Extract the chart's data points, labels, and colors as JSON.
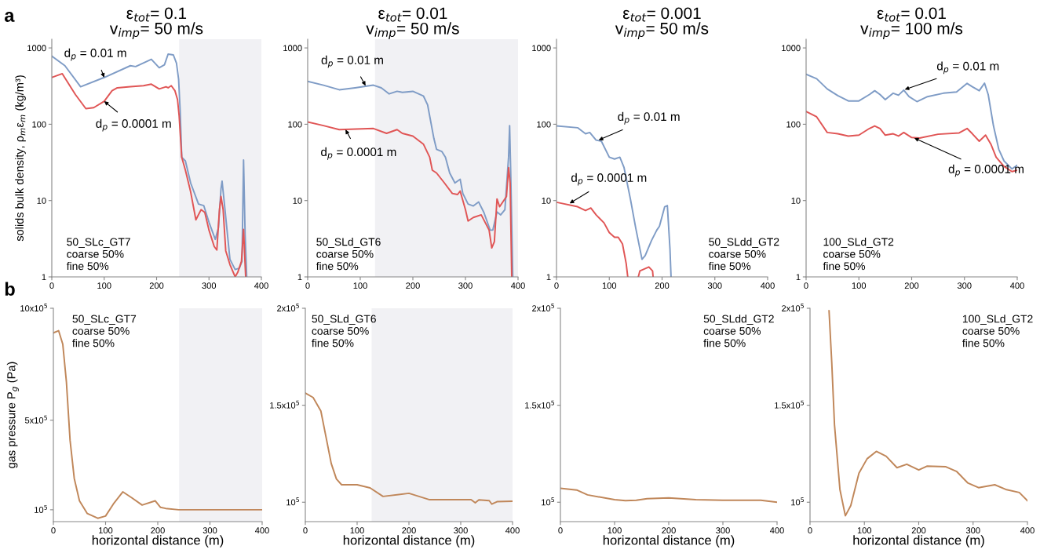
{
  "chart_data": [
    {
      "type": "line",
      "title": "ε$_{tot}$= 0.1\nv$_{imp}$= 50 m/s",
      "ylabel": "solids bulk density, ρ$_{m}$ε$_{m}$ (kg/m³)",
      "log": true,
      "xlim": [
        0,
        400
      ],
      "xticks": [
        0,
        100,
        200,
        300,
        400
      ],
      "ylim": [
        1,
        1300
      ],
      "yticks": [
        1,
        10,
        100,
        1000
      ],
      "grid": false,
      "annotations": [
        "a",
        "50_SLc_GT7\ncoarse 50%\nfine 50%",
        {
          "text": "d$_{p}$ = 0.01 m",
          "x": 100,
          "y": 410
        },
        {
          "text": "d$_{p}$ = 0.0001 m",
          "x": 100,
          "y": 200
        }
      ],
      "bands": [
        {
          "axis": "x",
          "from": 243,
          "to": 400,
          "color": "#f1f1f4"
        }
      ],
      "series": [
        {
          "color": "#7f9cc6",
          "x": [
            0,
            25,
            55,
            100,
            150,
            160,
            190,
            205,
            215,
            222,
            232,
            238,
            242,
            245,
            248,
            255,
            265,
            280,
            290,
            300,
            312,
            318,
            323,
            325,
            330,
            340,
            350,
            358,
            363,
            366,
            369,
            372
          ],
          "values": [
            783,
            585,
            310,
            410,
            585,
            570,
            710,
            550,
            600,
            830,
            810,
            630,
            390,
            150,
            37,
            33,
            17,
            9,
            8.6,
            5.2,
            3.1,
            4.4,
            14.4,
            18,
            8.3,
            1.7,
            1.25,
            1.3,
            1.6,
            34,
            3.5,
            1
          ]
        },
        {
          "color": "#e05555",
          "x": [
            0,
            20,
            45,
            65,
            80,
            100,
            115,
            125,
            150,
            175,
            190,
            205,
            218,
            222,
            228,
            235,
            240,
            243,
            248,
            255,
            265,
            275,
            285,
            292,
            300,
            310,
            315,
            320,
            323,
            327,
            332,
            340,
            350,
            355,
            362,
            366,
            370
          ],
          "values": [
            410,
            460,
            245,
            160,
            165,
            200,
            275,
            300,
            310,
            320,
            335,
            290,
            310,
            300,
            320,
            275,
            210,
            130,
            37,
            25,
            13,
            5.6,
            7.6,
            7,
            4.1,
            2.5,
            2.25,
            7.6,
            11.3,
            7.6,
            2.2,
            1.45,
            1,
            1.15,
            1.6,
            4.2,
            1
          ]
        }
      ]
    },
    {
      "type": "line",
      "title": "ε$_{tot}$= 0.01\nv$_{imp}$= 50 m/s",
      "log": true,
      "xlim": [
        0,
        400
      ],
      "xticks": [
        0,
        100,
        200,
        300,
        400
      ],
      "ylim": [
        1,
        1300
      ],
      "yticks": [
        1,
        10,
        100,
        1000
      ],
      "grid": false,
      "annotations": [
        "50_SLd_GT6\ncoarse 50%\nfine 50%",
        {
          "text": "d$_{p}$ = 0.01 m",
          "x": 110,
          "y": 320
        },
        {
          "text": "d$_{p}$ = 0.0001 m",
          "x": 72,
          "y": 85
        }
      ],
      "bands": [
        {
          "axis": "x",
          "from": 128,
          "to": 400,
          "color": "#f1f1f4"
        }
      ],
      "series": [
        {
          "color": "#7f9cc6",
          "x": [
            0,
            30,
            60,
            90,
            125,
            140,
            155,
            170,
            180,
            200,
            220,
            228,
            240,
            245,
            255,
            262,
            270,
            280,
            290,
            295,
            305,
            315,
            325,
            335,
            347,
            352,
            360,
            367,
            375,
            382,
            384,
            386,
            390
          ],
          "values": [
            365,
            325,
            283,
            300,
            325,
            300,
            250,
            270,
            262,
            270,
            235,
            180,
            65,
            47,
            44,
            37,
            23,
            17,
            19,
            12.4,
            9,
            8.5,
            9.6,
            7,
            4.1,
            4.1,
            7.1,
            6.5,
            7.6,
            37,
            96,
            25,
            1
          ]
        },
        {
          "color": "#e05555",
          "x": [
            0,
            30,
            60,
            125,
            150,
            170,
            180,
            200,
            220,
            232,
            237,
            245,
            260,
            275,
            285,
            290,
            300,
            305,
            315,
            330,
            345,
            350,
            355,
            360,
            365,
            378,
            382,
            385,
            388
          ],
          "values": [
            107,
            96,
            85,
            88,
            76,
            85,
            76,
            70,
            55,
            37,
            25,
            23,
            17,
            12.4,
            12,
            13.3,
            7.6,
            5.4,
            6,
            6.5,
            4.1,
            2.4,
            2.9,
            10.5,
            8.3,
            11.3,
            27,
            17,
            1
          ]
        }
      ]
    },
    {
      "type": "line",
      "title": "ε$_{tot}$= 0.001\nv$_{imp}$= 50 m/s",
      "log": true,
      "xlim": [
        0,
        400
      ],
      "xticks": [
        0,
        100,
        200,
        300,
        400
      ],
      "ylim": [
        1,
        1300
      ],
      "yticks": [
        1,
        10,
        100,
        1000
      ],
      "grid": false,
      "annotations": [
        "50_SLdd_GT2\ncoarse 50%\nfine 50%",
        {
          "text": "d$_{p}$ = 0.01 m",
          "x": 80,
          "y": 62
        },
        {
          "text": "d$_{p}$ = 0.0001 m",
          "x": 25,
          "y": 9.2
        }
      ],
      "series": [
        {
          "color": "#7f9cc6",
          "x": [
            0,
            40,
            55,
            63,
            75,
            85,
            100,
            110,
            120,
            128,
            140,
            150,
            162,
            168,
            180,
            190,
            195,
            205,
            210,
            215,
            217
          ],
          "values": [
            95,
            90,
            75,
            78,
            62,
            60,
            37,
            35,
            37,
            27,
            10.5,
            4.4,
            1.7,
            1.9,
            3,
            4.1,
            4.6,
            8.3,
            8.6,
            2.3,
            1
          ]
        },
        {
          "color": "#e05555",
          "x": [
            0,
            40,
            55,
            65,
            75,
            90,
            100,
            110,
            117,
            125,
            132,
            135,
            145,
            155,
            158,
            175,
            182,
            183
          ],
          "values": [
            9.5,
            8.3,
            7.4,
            8,
            6.5,
            5.1,
            3.8,
            3.3,
            3.3,
            2.7,
            1.5,
            1,
            null,
            1,
            1.2,
            1.35,
            1.2,
            1
          ]
        }
      ]
    },
    {
      "type": "line",
      "title": "ε$_{tot}$= 0.01\nv$_{imp}$= 100 m/s",
      "log": true,
      "xlim": [
        0,
        400
      ],
      "xticks": [
        0,
        100,
        200,
        300,
        400
      ],
      "ylim": [
        1,
        1300
      ],
      "yticks": [
        1,
        10,
        100,
        1000
      ],
      "grid": false,
      "annotations": [
        "100_SLd_GT2\ncoarse 50%\nfine 50%",
        {
          "text": "d$_{p}$ = 0.01 m",
          "x": 187,
          "y": 285
        },
        {
          "text": "d$_{p}$ = 0.0001 m",
          "x": 205,
          "y": 66
        }
      ],
      "series": [
        {
          "color": "#7f9cc6",
          "x": [
            0,
            20,
            40,
            60,
            80,
            100,
            120,
            130,
            140,
            150,
            165,
            175,
            185,
            195,
            210,
            230,
            260,
            285,
            305,
            315,
            328,
            338,
            345,
            355,
            365,
            375,
            390,
            400
          ],
          "values": [
            451,
            395,
            290,
            237,
            202,
            202,
            245,
            275,
            245,
            210,
            255,
            240,
            280,
            230,
            198,
            230,
            255,
            265,
            343,
            310,
            275,
            345,
            245,
            95,
            47,
            33,
            26,
            29
          ]
        },
        {
          "color": "#e05555",
          "x": [
            0,
            20,
            40,
            60,
            80,
            100,
            120,
            130,
            140,
            150,
            165,
            175,
            185,
            200,
            215,
            250,
            290,
            305,
            315,
            328,
            340,
            350,
            360,
            375,
            390,
            400
          ],
          "values": [
            147,
            125,
            78,
            75,
            70,
            72,
            88,
            95,
            88,
            72,
            75,
            70,
            78,
            67,
            66,
            74,
            77,
            88,
            75,
            60,
            72,
            55,
            37,
            28,
            24,
            25
          ]
        }
      ]
    },
    {
      "type": "line",
      "xlabel": "horizontal distance (m)",
      "ylabel": "gas pressure P$_{g}$ (Pa)",
      "xlim": [
        0,
        400
      ],
      "xticks": [
        0,
        100,
        200,
        300,
        400
      ],
      "ylim": [
        47000,
        1000000
      ],
      "yticks": [
        {
          "value": 100000,
          "label": "10$^{5}$"
        },
        {
          "value": 500000,
          "label": "5x10$^{5}$"
        },
        {
          "value": 1000000,
          "label": "10x10$^{5}$"
        }
      ],
      "grid": false,
      "annotations": [
        "b",
        "50_SLc_GT7\ncoarse 50%\nfine 50%"
      ],
      "bands": [
        {
          "axis": "x",
          "from": 241,
          "to": 400,
          "color": "#f1f1f4"
        }
      ],
      "series": [
        {
          "color": "#c0875a",
          "x": [
            0,
            10,
            18,
            25,
            32,
            40,
            50,
            65,
            85,
            100,
            115,
            133,
            150,
            170,
            195,
            205,
            215,
            240,
            400
          ],
          "values": [
            890000,
            900000,
            840000,
            670000,
            410000,
            240000,
            140000,
            83000,
            62000,
            72000,
            126000,
            180000,
            154000,
            121000,
            140000,
            111000,
            106000,
            100000,
            100000
          ]
        }
      ]
    },
    {
      "type": "line",
      "xlabel": "horizontal distance (m)",
      "xlim": [
        0,
        400
      ],
      "xticks": [
        0,
        100,
        200,
        300,
        400
      ],
      "ylim": [
        90000,
        200000
      ],
      "yticks": [
        {
          "value": 100000,
          "label": "10$^{5}$"
        },
        {
          "value": 150000,
          "label": "1.5x10$^{5}$"
        },
        {
          "value": 200000,
          "label": "2x10$^{5}$"
        }
      ],
      "grid": false,
      "annotations": [
        "50_SLd_GT6\ncoarse 50%\nfine 50%"
      ],
      "bands": [
        {
          "axis": "x",
          "from": 128,
          "to": 400,
          "color": "#f1f1f4"
        }
      ],
      "series": [
        {
          "color": "#c0875a",
          "x": [
            0,
            15,
            30,
            40,
            50,
            60,
            70,
            100,
            125,
            150,
            200,
            240,
            320,
            328,
            335,
            355,
            360,
            370,
            400
          ],
          "values": [
            156300,
            154000,
            147000,
            133500,
            120000,
            112000,
            109000,
            109000,
            107400,
            103000,
            104600,
            101300,
            101300,
            99700,
            101200,
            100800,
            99000,
            100300,
            100500
          ]
        }
      ]
    },
    {
      "type": "line",
      "xlabel": "horizontal distance (m)",
      "xlim": [
        0,
        400
      ],
      "xticks": [
        0,
        100,
        200,
        300,
        400
      ],
      "ylim": [
        90000,
        200000
      ],
      "yticks": [
        {
          "value": 100000,
          "label": "10$^{5}$"
        },
        {
          "value": 150000,
          "label": "1.5x10$^{5}$"
        },
        {
          "value": 200000,
          "label": "2x10$^{5}$"
        }
      ],
      "grid": false,
      "annotations": [
        "50_SLdd_GT2\ncoarse 50%\nfine 50%"
      ],
      "series": [
        {
          "color": "#c0875a",
          "x": [
            0,
            30,
            50,
            100,
            120,
            140,
            160,
            200,
            250,
            300,
            370,
            400
          ],
          "values": [
            107200,
            106300,
            103800,
            101300,
            100800,
            101000,
            101800,
            102200,
            101300,
            101000,
            101000,
            100000
          ]
        }
      ]
    },
    {
      "type": "line",
      "xlabel": "horizontal distance (m)",
      "xlim": [
        0,
        400
      ],
      "xticks": [
        0,
        100,
        200,
        300,
        400
      ],
      "ylim": [
        90000,
        200000
      ],
      "yticks": [
        {
          "value": 100000,
          "label": "10$^{5}$"
        },
        {
          "value": 150000,
          "label": "1.5x10$^{5}$"
        },
        {
          "value": 200000,
          "label": "2x10$^{5}$"
        }
      ],
      "grid": false,
      "annotations": [
        "100_SLd_GT2\ncoarse 50%\nfine 50%"
      ],
      "series": [
        {
          "color": "#c0875a",
          "x": [
            35,
            40,
            45,
            55,
            65,
            75,
            90,
            105,
            122,
            140,
            160,
            178,
            200,
            215,
            250,
            270,
            290,
            310,
            340,
            360,
            385,
            400
          ],
          "values": [
            198700,
            172000,
            140000,
            106600,
            93000,
            98300,
            115000,
            122400,
            126200,
            123700,
            117800,
            119600,
            116600,
            118600,
            118300,
            115800,
            110000,
            107500,
            109000,
            106600,
            105000,
            100800
          ]
        }
      ]
    }
  ]
}
